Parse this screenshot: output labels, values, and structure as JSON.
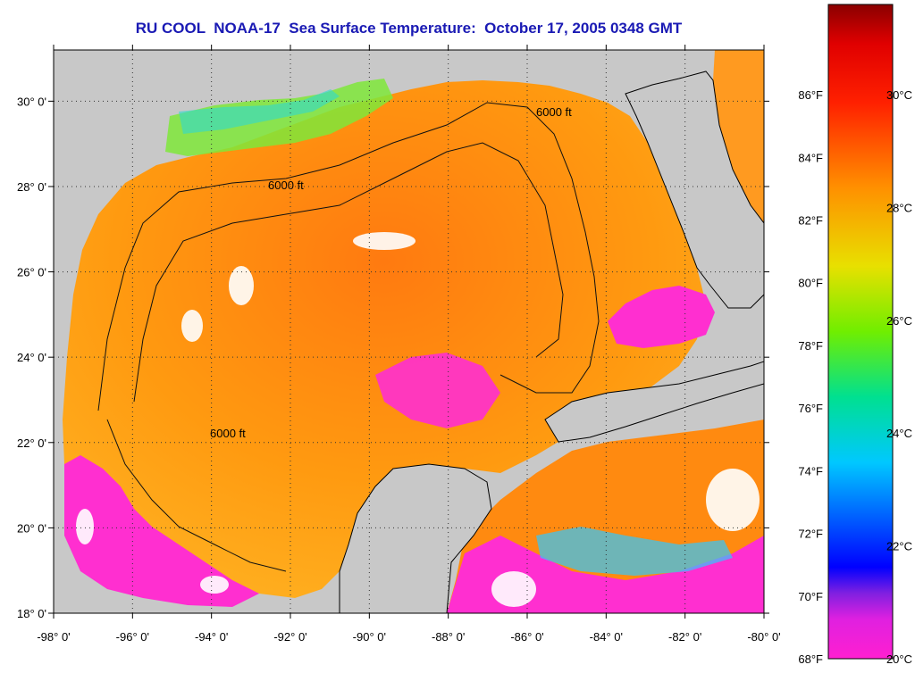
{
  "title": "RU COOL  NOAA-17  Sea Surface Temperature:  October 17, 2005 0348 GMT",
  "map": {
    "lon_min": -98,
    "lon_max": -80,
    "lat_min": 18,
    "lat_max": 31.2,
    "land_color": "#c8c8c8",
    "coastline_color": "#000000",
    "cloud_mask_color": "#ffffff",
    "contour_label": "6000 ft",
    "lon_ticks": [
      {
        "value": -98,
        "label": "-98° 0'"
      },
      {
        "value": -96,
        "label": "-96° 0'"
      },
      {
        "value": -94,
        "label": "-94° 0'"
      },
      {
        "value": -92,
        "label": "-92° 0'"
      },
      {
        "value": -90,
        "label": "-90° 0'"
      },
      {
        "value": -88,
        "label": "-88° 0'"
      },
      {
        "value": -86,
        "label": "-86° 0'"
      },
      {
        "value": -84,
        "label": "-84° 0'"
      },
      {
        "value": -82,
        "label": "-82° 0'"
      },
      {
        "value": -80,
        "label": "-80° 0'"
      }
    ],
    "lat_ticks": [
      {
        "value": 18,
        "label": "18° 0'"
      },
      {
        "value": 20,
        "label": "20° 0'"
      },
      {
        "value": 22,
        "label": "22° 0'"
      },
      {
        "value": 24,
        "label": "24° 0'"
      },
      {
        "value": 26,
        "label": "26° 0'"
      },
      {
        "value": 28,
        "label": "28° 0'"
      },
      {
        "value": 30,
        "label": "30° 0'"
      }
    ]
  },
  "colorbar": {
    "min_c": 20,
    "max_c": 31.6,
    "colors": [
      "#ff1fd0",
      "#cc22ee",
      "#5522dd",
      "#0000ff",
      "#00a0ff",
      "#00e0e0",
      "#00e080",
      "#80ee00",
      "#e0e000",
      "#ffb000",
      "#ff7000",
      "#ff2000",
      "#e00000",
      "#8a0000"
    ],
    "fahrenheit_labels": [
      {
        "value": 68,
        "label": "68°F"
      },
      {
        "value": 70,
        "label": "70°F"
      },
      {
        "value": 72,
        "label": "72°F"
      },
      {
        "value": 74,
        "label": "74°F"
      },
      {
        "value": 76,
        "label": "76°F"
      },
      {
        "value": 78,
        "label": "78°F"
      },
      {
        "value": 80,
        "label": "80°F"
      },
      {
        "value": 82,
        "label": "82°F"
      },
      {
        "value": 84,
        "label": "84°F"
      },
      {
        "value": 86,
        "label": "86°F"
      }
    ],
    "celsius_labels": [
      {
        "value": 20,
        "label": "20°C"
      },
      {
        "value": 22,
        "label": "22°C"
      },
      {
        "value": 24,
        "label": "24°C"
      },
      {
        "value": 26,
        "label": "26°C"
      },
      {
        "value": 28,
        "label": "28°C"
      },
      {
        "value": 30,
        "label": "30°C"
      }
    ]
  }
}
